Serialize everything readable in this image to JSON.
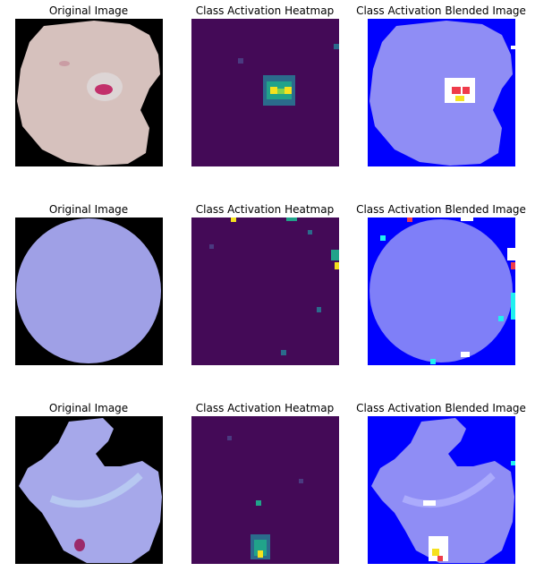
{
  "titles": {
    "original": "Original Image",
    "heatmap": "Class Activation Heatmap",
    "blended": "Class Activation Blended Image"
  },
  "rows": [
    {
      "original_title": "Original Image",
      "heatmap_title": "Class Activation Heatmap",
      "blended_title": "Class Activation Blended Image"
    },
    {
      "original_title": "Original Image",
      "heatmap_title": "Class Activation Heatmap",
      "blended_title": "Class Activation Blended Image"
    },
    {
      "original_title": "Original Image",
      "heatmap_title": "Class Activation Heatmap",
      "blended_title": "Class Activation Blended Image"
    }
  ],
  "colors": {
    "background_black": "#000000",
    "cell_pink": "#d6c1bd",
    "cell_lavender": "#9fa0e6",
    "parasite": "#c2306b",
    "heatmap_bg": "#440a57",
    "heatmap_hot": "#f5e11e",
    "heatmap_mid": "#21a38a",
    "blend_bg": "#0000fe",
    "blend_cell": "#8f8df5"
  }
}
